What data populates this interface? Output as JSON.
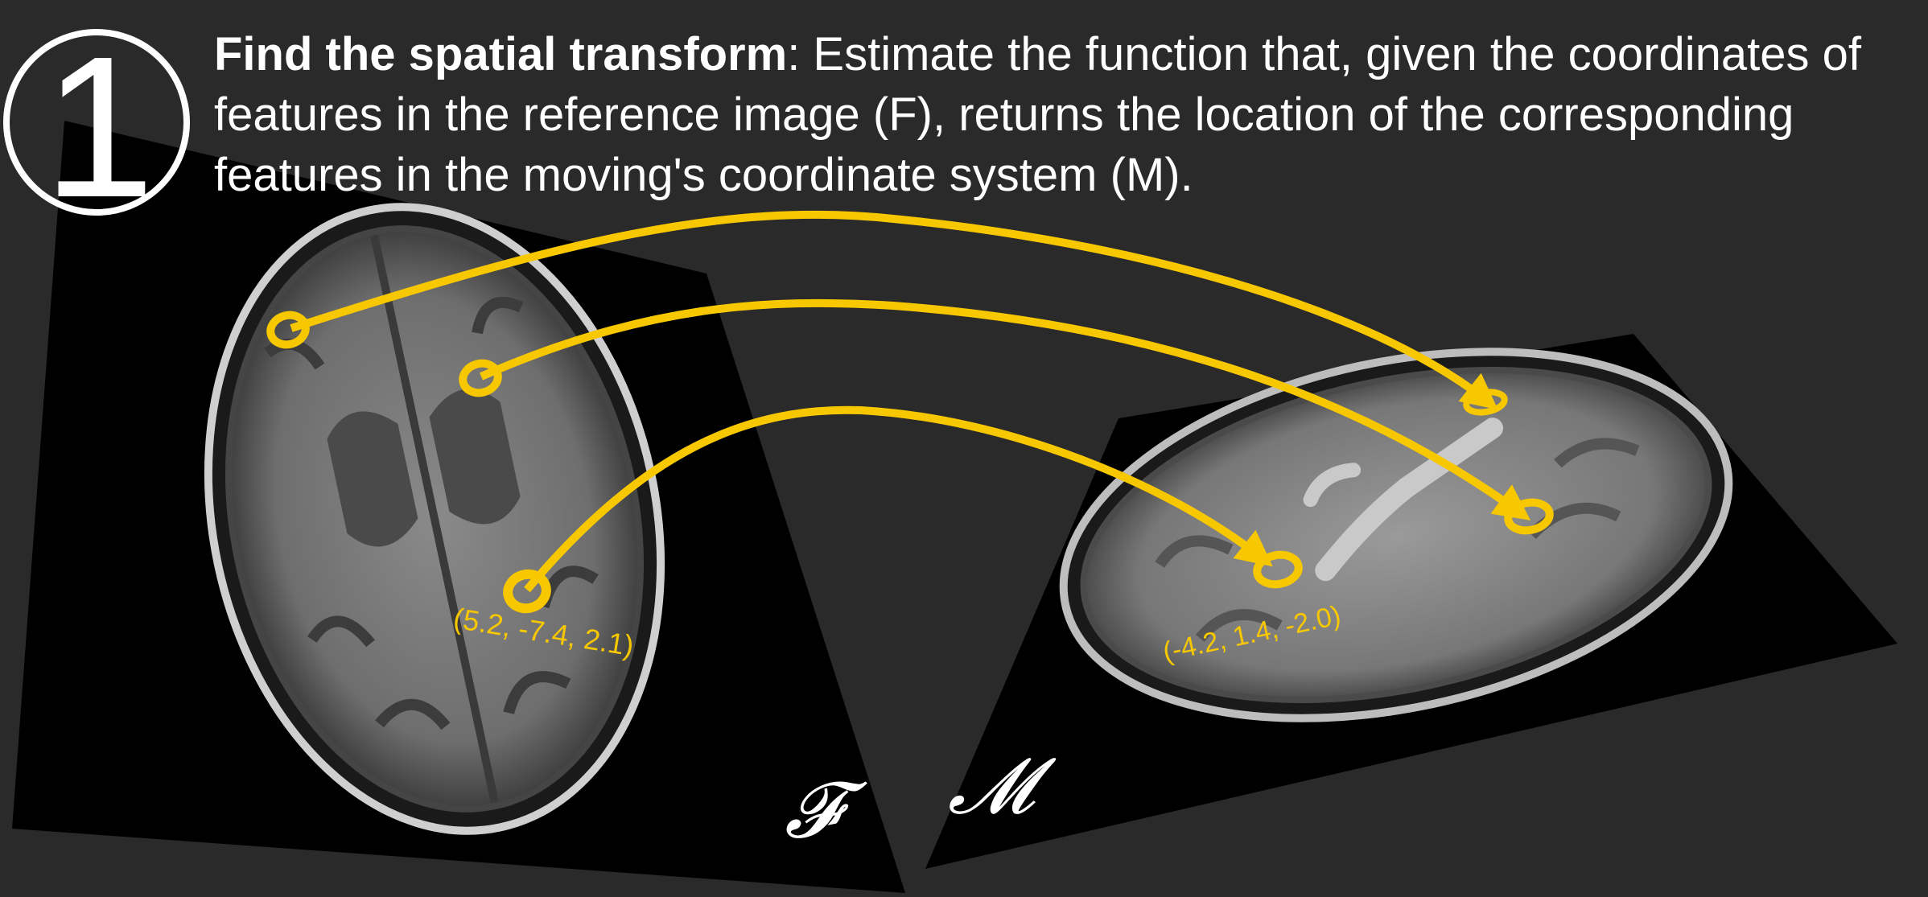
{
  "step_number": "1",
  "caption": {
    "title": "Find the spatial transform",
    "text_1": ": Estimate the function that, given the coordinates of features in the reference image (",
    "ref_symbol": "F",
    "text_2": "), returns the location of the corresponding features in the moving's coordinate system (",
    "moving_symbol": "M",
    "text_3": ")."
  },
  "labels": {
    "fixed_image": "𝓕",
    "moving_image": "𝓜"
  },
  "coordinates": {
    "fixed_point": "(5.2, -7.4, 2.1)",
    "moving_point": "(-4.2, 1.4, -2.0)"
  },
  "colors": {
    "background": "#2a2a2a",
    "arrow": "#f7c800",
    "text": "#ffffff",
    "panel": "#000000"
  },
  "correspondences": [
    {
      "from": "fixed landmark 1",
      "to": "moving landmark 1"
    },
    {
      "from": "fixed landmark 2",
      "to": "moving landmark 2"
    },
    {
      "from": "fixed landmark 3",
      "to": "moving landmark 3"
    }
  ]
}
